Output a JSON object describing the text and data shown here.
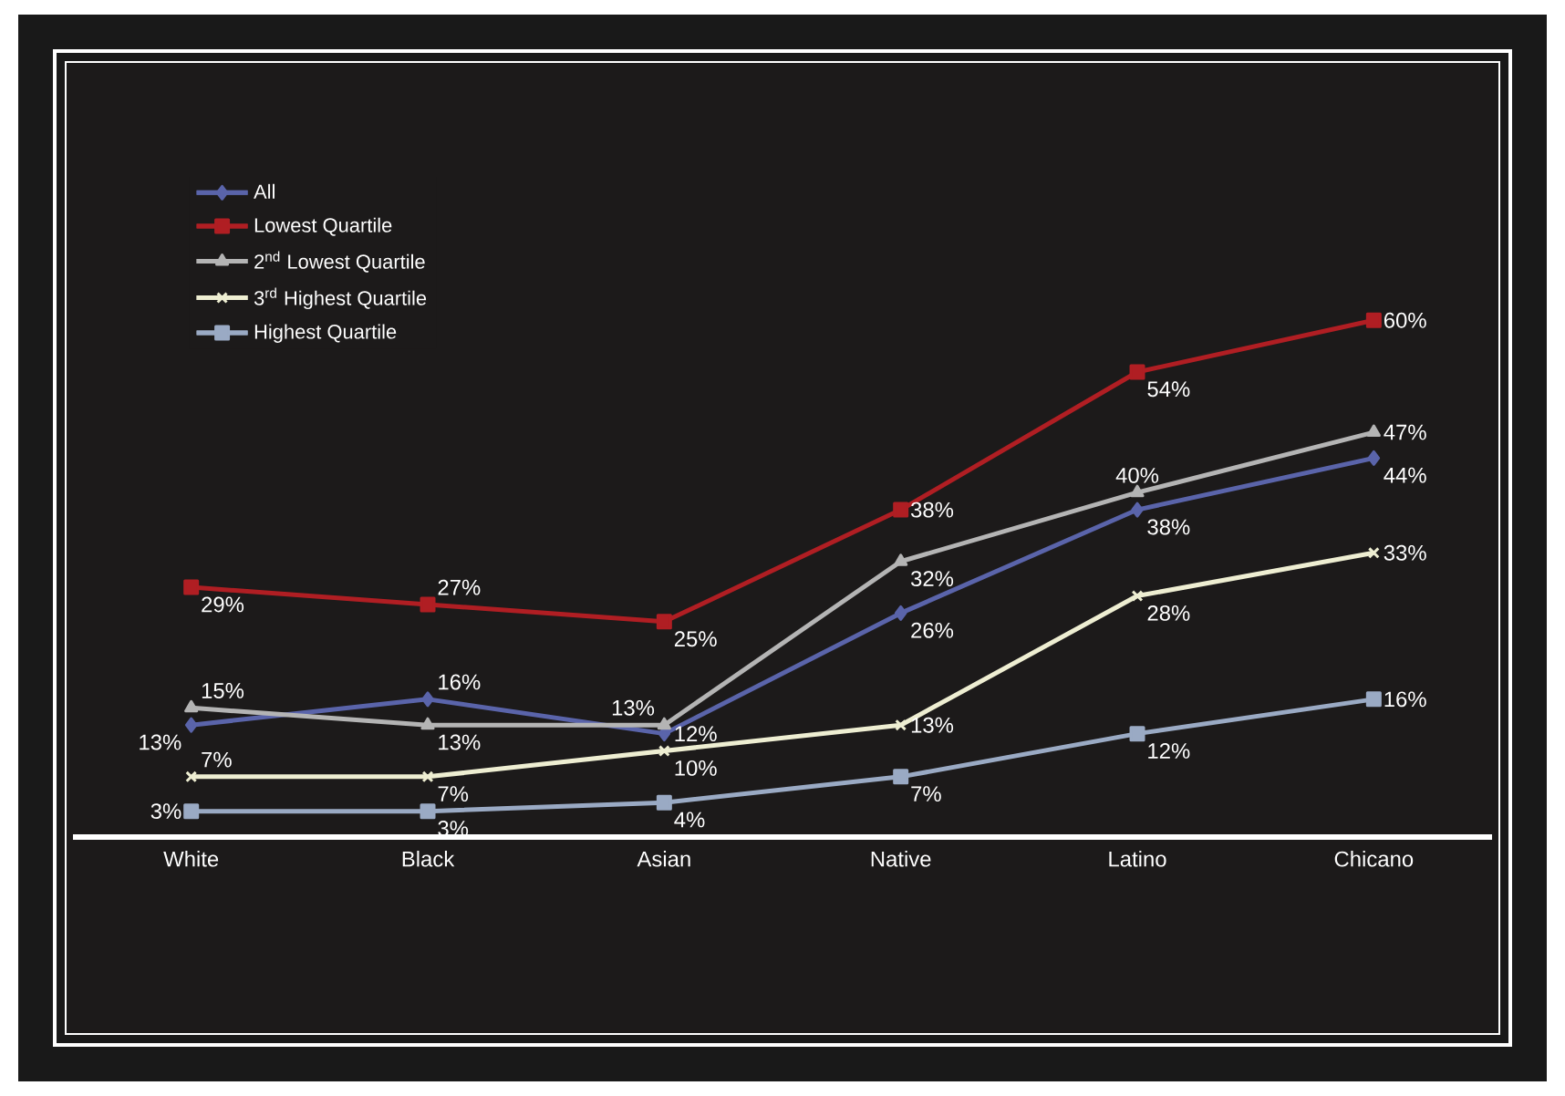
{
  "chart_data": {
    "type": "line",
    "categories": [
      "White",
      "Black",
      "Asian",
      "Native",
      "Latino",
      "Chicano"
    ],
    "series": [
      {
        "name": "All",
        "color": "#5a64aa",
        "marker": "diamond",
        "values": [
          13,
          16,
          12,
          26,
          38,
          44
        ],
        "value_labels": [
          "13%",
          "16%",
          "12%",
          "26%",
          "38%",
          "44%"
        ]
      },
      {
        "name": "Lowest Quartile",
        "color": "#b01e23",
        "marker": "square",
        "values": [
          29,
          27,
          25,
          38,
          54,
          60
        ],
        "value_labels": [
          "29%",
          "27%",
          "25%",
          "38%",
          "54%",
          "60%"
        ]
      },
      {
        "name": "2$^{nd}$ Lowest Quartile",
        "color": "#b4b4b4",
        "marker": "triangle",
        "values": [
          15,
          13,
          13,
          32,
          40,
          47
        ],
        "value_labels": [
          "15%",
          "13%",
          "13%",
          "32%",
          "40%",
          "47%"
        ]
      },
      {
        "name": "3$^{rd}$ Highest Quartile",
        "color": "#eeeed2",
        "marker": "cross",
        "values": [
          7,
          7,
          10,
          13,
          28,
          33
        ],
        "value_labels": [
          "7%",
          "7%",
          "10%",
          "13%",
          "28%",
          "33%"
        ]
      },
      {
        "name": "Highest Quartile",
        "color": "#9aaac4",
        "marker": "square",
        "values": [
          3,
          3,
          4,
          7,
          12,
          16
        ],
        "value_labels": [
          "3%",
          "3%",
          "4%",
          "7%",
          "12%",
          "16%"
        ]
      }
    ],
    "ylim": [
      0,
      90
    ],
    "tick_labels": "x",
    "legend": "top left"
  }
}
